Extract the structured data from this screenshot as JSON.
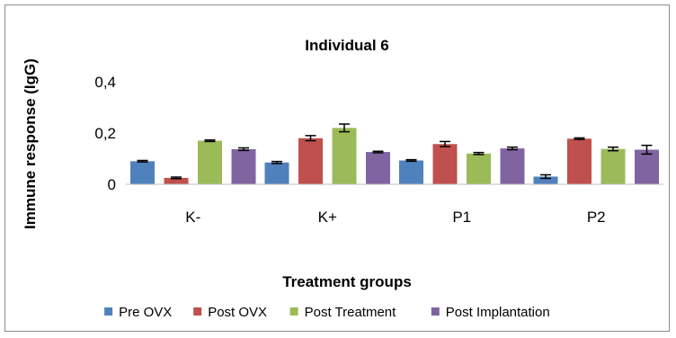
{
  "chart_data": {
    "type": "bar",
    "title": "Individual 6",
    "xlabel": "Treatment groups",
    "ylabel": "Immune response (IgG)",
    "ylim": [
      0,
      0.4
    ],
    "y_ticks": [
      "0",
      "0,2",
      "0,4"
    ],
    "y_tick_values": [
      0,
      0.2,
      0.4
    ],
    "categories": [
      "K-",
      "K+",
      "P1",
      "P2"
    ],
    "series": [
      {
        "name": "Pre OVX",
        "color": "#4F81BD",
        "values": [
          0.09,
          0.085,
          0.093,
          0.03
        ],
        "errors": [
          0.003,
          0.004,
          0.003,
          0.007
        ]
      },
      {
        "name": "Post OVX",
        "color": "#C0504D",
        "values": [
          0.025,
          0.18,
          0.157,
          0.178
        ],
        "errors": [
          0.003,
          0.01,
          0.01,
          0.003
        ]
      },
      {
        "name": "Post Treatment",
        "color": "#9BBB59",
        "values": [
          0.17,
          0.22,
          0.12,
          0.138
        ],
        "errors": [
          0.003,
          0.015,
          0.004,
          0.007
        ]
      },
      {
        "name": "Post Implantation",
        "color": "#8064A2",
        "values": [
          0.137,
          0.126,
          0.14,
          0.135
        ],
        "errors": [
          0.005,
          0.003,
          0.005,
          0.017
        ]
      }
    ],
    "grid": false,
    "legend_position": "bottom"
  }
}
